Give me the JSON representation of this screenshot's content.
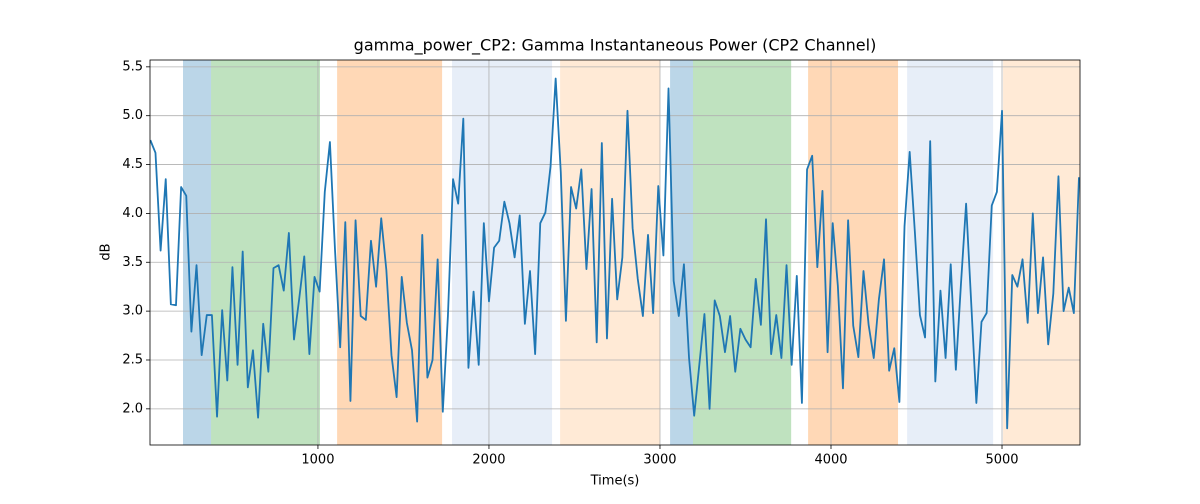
{
  "chart_data": {
    "type": "line",
    "title": "gamma_power_CP2: Gamma Instantaneous Power (CP2 Channel)",
    "xlabel": "Time(s)",
    "ylabel": "dB",
    "xlim": [
      18,
      5456
    ],
    "ylim": [
      1.63,
      5.57
    ],
    "xticks": [
      1000,
      2000,
      3000,
      4000,
      5000
    ],
    "yticks": [
      {
        "value": 2,
        "label": "2.0"
      },
      {
        "value": 2.5,
        "label": "2.5"
      },
      {
        "value": 3,
        "label": "3.0"
      },
      {
        "value": 3.5,
        "label": "3.5"
      },
      {
        "value": 4,
        "label": "4.0"
      },
      {
        "value": 4.5,
        "label": "4.5"
      },
      {
        "value": 5,
        "label": "5.0"
      },
      {
        "value": 5.5,
        "label": "5.5"
      }
    ],
    "grid": true,
    "spans": [
      {
        "start": 211,
        "end": 375,
        "color": "#1f77b4"
      },
      {
        "start": 375,
        "end": 1012,
        "color": "#2ca02c"
      },
      {
        "start": 1112,
        "end": 1726,
        "color": "#ff7f0e"
      },
      {
        "start": 1784,
        "end": 2369,
        "color": "#aec7e8"
      },
      {
        "start": 2416,
        "end": 3000,
        "color": "#ffbb78"
      },
      {
        "start": 3059,
        "end": 3193,
        "color": "#1f77b4"
      },
      {
        "start": 3193,
        "end": 3767,
        "color": "#2ca02c"
      },
      {
        "start": 3866,
        "end": 4392,
        "color": "#ff7f0e"
      },
      {
        "start": 4445,
        "end": 4948,
        "color": "#aec7e8"
      },
      {
        "start": 5006,
        "end": 5456,
        "color": "#ffbb78"
      }
    ],
    "span_opacity": 0.3,
    "x": [
      20,
      50,
      80,
      110,
      140,
      170,
      200,
      230,
      260,
      290,
      320,
      350,
      380,
      410,
      440,
      470,
      500,
      530,
      560,
      590,
      620,
      650,
      680,
      710,
      740,
      770,
      800,
      830,
      860,
      890,
      920,
      950,
      980,
      1010,
      1040,
      1070,
      1100,
      1130,
      1160,
      1190,
      1220,
      1250,
      1280,
      1310,
      1340,
      1370,
      1400,
      1430,
      1460,
      1490,
      1520,
      1550,
      1580,
      1610,
      1640,
      1670,
      1700,
      1730,
      1760,
      1790,
      1820,
      1850,
      1880,
      1910,
      1940,
      1970,
      2000,
      2030,
      2060,
      2090,
      2120,
      2150,
      2180,
      2210,
      2240,
      2270,
      2300,
      2330,
      2360,
      2390,
      2420,
      2450,
      2480,
      2510,
      2540,
      2570,
      2600,
      2630,
      2660,
      2690,
      2720,
      2750,
      2780,
      2810,
      2840,
      2870,
      2900,
      2930,
      2960,
      2990,
      3020,
      3050,
      3080,
      3110,
      3140,
      3170,
      3200,
      3230,
      3260,
      3290,
      3320,
      3350,
      3380,
      3410,
      3440,
      3470,
      3500,
      3530,
      3560,
      3590,
      3620,
      3650,
      3680,
      3710,
      3740,
      3770,
      3800,
      3830,
      3860,
      3890,
      3920,
      3950,
      3980,
      4010,
      4040,
      4070,
      4100,
      4130,
      4160,
      4190,
      4220,
      4250,
      4280,
      4310,
      4340,
      4370,
      4400,
      4430,
      4460,
      4490,
      4520,
      4550,
      4580,
      4610,
      4640,
      4670,
      4700,
      4730,
      4760,
      4790,
      4820,
      4850,
      4880,
      4910,
      4940,
      4970,
      5000,
      5030,
      5060,
      5090,
      5120,
      5150,
      5180,
      5210,
      5240,
      5270,
      5300,
      5330,
      5360,
      5390,
      5420,
      5450
    ],
    "series": [
      {
        "color": "#1f77b4",
        "values": [
          4.75,
          4.62,
          3.62,
          4.35,
          3.07,
          3.06,
          4.27,
          4.18,
          2.79,
          3.47,
          2.55,
          2.96,
          2.96,
          1.92,
          3.01,
          2.29,
          3.45,
          2.45,
          3.61,
          2.22,
          2.6,
          1.91,
          2.87,
          2.38,
          3.44,
          3.47,
          3.21,
          3.8,
          2.71,
          3.12,
          3.56,
          2.56,
          3.35,
          3.2,
          4.22,
          4.73,
          3.62,
          2.63,
          3.91,
          2.08,
          3.93,
          2.95,
          2.91,
          3.72,
          3.25,
          3.95,
          3.42,
          2.55,
          2.12,
          3.35,
          2.88,
          2.6,
          1.87,
          3.78,
          2.32,
          2.5,
          3.53,
          1.97,
          2.95,
          4.35,
          4.1,
          4.97,
          2.42,
          3.2,
          2.45,
          3.9,
          3.1,
          3.65,
          3.72,
          4.12,
          3.9,
          3.55,
          3.98,
          2.87,
          3.41,
          2.56,
          3.9,
          4.01,
          4.48,
          5.38,
          4.42,
          2.9,
          4.27,
          4.05,
          4.45,
          3.43,
          4.25,
          2.68,
          4.72,
          2.72,
          4.15,
          3.12,
          3.55,
          5.05,
          3.85,
          3.33,
          2.95,
          3.78,
          2.98,
          4.28,
          3.57,
          5.28,
          3.31,
          2.95,
          3.48,
          2.52,
          1.93,
          2.45,
          2.97,
          2.0,
          3.11,
          2.95,
          2.58,
          2.95,
          2.38,
          2.82,
          2.71,
          2.63,
          3.33,
          2.86,
          3.94,
          2.56,
          2.96,
          2.52,
          3.47,
          2.45,
          3.36,
          2.06,
          4.45,
          4.59,
          3.45,
          4.23,
          2.58,
          3.9,
          3.26,
          2.21,
          3.93,
          2.85,
          2.53,
          3.41,
          2.86,
          2.52,
          3.12,
          3.53,
          2.39,
          2.62,
          2.07,
          3.87,
          4.63,
          3.82,
          2.96,
          2.73,
          4.74,
          2.28,
          3.21,
          2.52,
          3.48,
          2.4,
          3.28,
          4.1,
          3.08,
          2.06,
          2.89,
          2.98,
          4.08,
          4.22,
          5.05,
          1.8,
          3.37,
          3.25,
          3.53,
          2.88,
          4.0,
          2.98,
          3.55,
          2.66,
          3.18,
          4.38,
          3.0,
          3.24,
          2.98,
          4.37
        ]
      }
    ]
  }
}
